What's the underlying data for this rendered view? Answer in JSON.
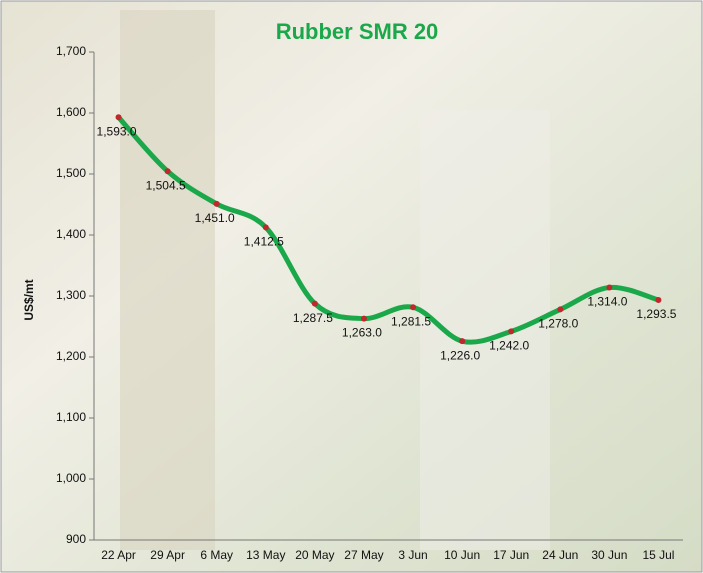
{
  "chart_data": {
    "type": "line",
    "title": "Rubber SMR 20",
    "y_label": "US$/mt",
    "categories": [
      "22 Apr",
      "29 Apr",
      "6 May",
      "13 May",
      "20 May",
      "27 May",
      "3 Jun",
      "10 Jun",
      "17 Jun",
      "24 Jun",
      "30 Jun",
      "15 Jul"
    ],
    "series": [
      {
        "name": "Rubber SMR 20",
        "color": "#1aa84a",
        "marker_color": "#c0282d",
        "values": [
          1593.0,
          1504.5,
          1451.0,
          1412.5,
          1287.5,
          1263.0,
          1281.5,
          1226.0,
          1242.0,
          1278.0,
          1314.0,
          1293.5
        ],
        "value_labels": [
          "1,593.0",
          "1,504.5",
          "1,451.0",
          "1,412.5",
          "1,287.5",
          "1,263.0",
          "1,281.5",
          "1,226.0",
          "1,242.0",
          "1,278.0",
          "1,314.0",
          "1,293.5"
        ]
      }
    ],
    "ylim": [
      900,
      1700
    ],
    "yticks": [
      900,
      {
        "value": 1000,
        "label": "1,000"
      },
      {
        "value": 1100,
        "label": "1,100"
      },
      {
        "value": 1200,
        "label": "1,200"
      },
      {
        "value": 1300,
        "label": "1,300"
      },
      {
        "value": 1400,
        "label": "1,400"
      },
      {
        "value": 1500,
        "label": "1,500"
      },
      {
        "value": 1600,
        "label": "1,600"
      },
      {
        "value": 1700,
        "label": "1,700"
      }
    ],
    "grid": false,
    "smooth": true
  }
}
